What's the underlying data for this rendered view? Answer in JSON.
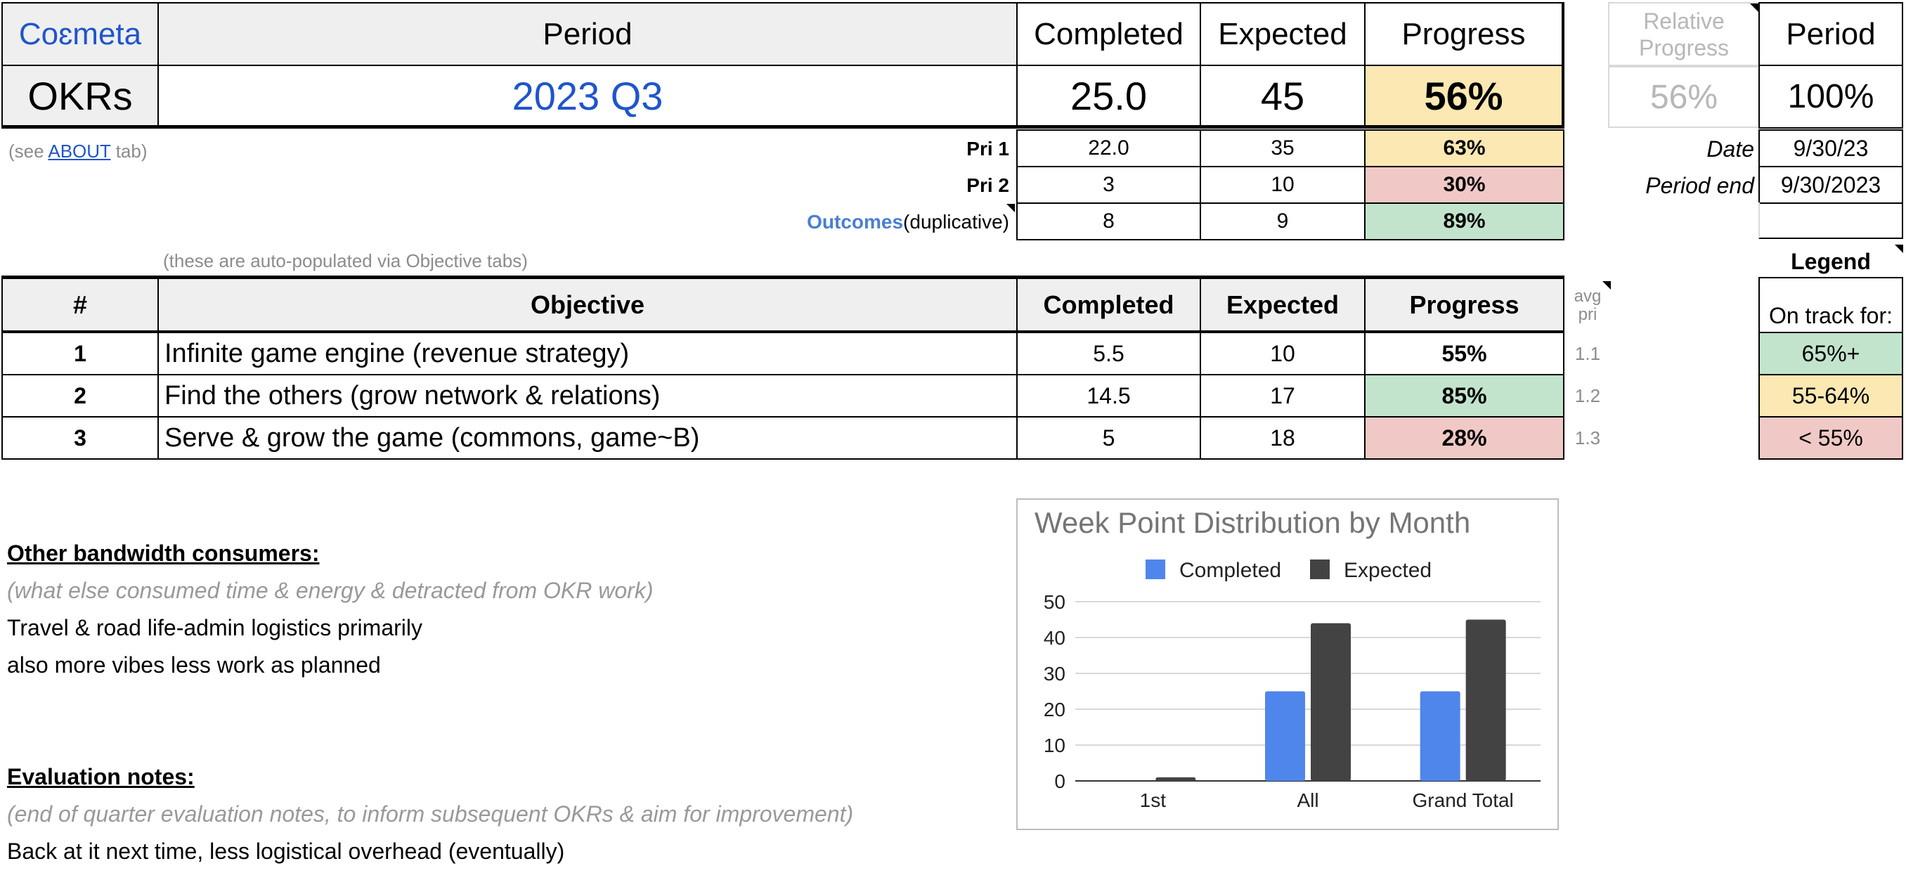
{
  "header": {
    "brand": "Coɛmeta",
    "okrs": "OKRs",
    "period_label": "Period",
    "period_value": "2023 Q3",
    "completed_label": "Completed",
    "completed_value": "25.0",
    "expected_label": "Expected",
    "expected_value": "45",
    "progress_label": "Progress",
    "progress_value": "56%"
  },
  "side_header": {
    "relative_progress_label": "Relative Progress",
    "relative_progress_value": "56%",
    "period_label": "Period",
    "period_value": "100%",
    "date_label": "Date",
    "date_value": "9/30/23",
    "period_end_label": "Period end",
    "period_end_value": "9/30/2023"
  },
  "about_note": {
    "prefix": "(see ",
    "link": "ABOUT",
    "suffix": " tab)"
  },
  "priorities": [
    {
      "label": "Pri 1",
      "completed": "22.0",
      "expected": "35",
      "progress": "63%"
    },
    {
      "label": "Pri 2",
      "completed": "3",
      "expected": "10",
      "progress": "30%"
    },
    {
      "label_link": "Outcomes",
      "label_suffix": " (duplicative)",
      "completed": "8",
      "expected": "9",
      "progress": "89%"
    }
  ],
  "autopop_note": "(these are auto-populated via Objective tabs)",
  "objectives_table": {
    "headers": {
      "num": "#",
      "objective": "Objective",
      "completed": "Completed",
      "expected": "Expected",
      "progress": "Progress",
      "avg_pri": "avg pri"
    },
    "rows": [
      {
        "num": "1",
        "objective": "Infinite game engine (revenue strategy)",
        "completed": "5.5",
        "expected": "10",
        "progress": "55%",
        "avg_pri": "1.1"
      },
      {
        "num": "2",
        "objective": "Find the others (grow network & relations)",
        "completed": "14.5",
        "expected": "17",
        "progress": "85%",
        "avg_pri": "1.2"
      },
      {
        "num": "3",
        "objective": "Serve & grow the game (commons, game~B)",
        "completed": "5",
        "expected": "18",
        "progress": "28%",
        "avg_pri": "1.3"
      }
    ]
  },
  "legend": {
    "title": "Legend",
    "subtitle": "On track for:",
    "items": [
      {
        "label": "65%+",
        "color": "#c2e4cc"
      },
      {
        "label": "55-64%",
        "color": "#fbe8b2"
      },
      {
        "label": "< 55%",
        "color": "#f0c9c6"
      }
    ]
  },
  "bandwidth": {
    "title": "Other bandwidth consumers:",
    "hint": "(what else consumed time & energy & detracted from OKR work)",
    "lines": [
      "Travel & road life-admin logistics primarily",
      "also more vibes less work as planned"
    ]
  },
  "evaluation": {
    "title": "Evaluation notes:",
    "hint": "(end of quarter evaluation notes, to inform subsequent OKRs & aim for improvement)",
    "lines": [
      "Back at it next time, less logistical overhead (eventually)"
    ]
  },
  "colors": {
    "brand_blue": "#1f55cc",
    "completed_series": "#4f86ec",
    "expected_series": "#434343"
  },
  "chart_data": {
    "type": "bar",
    "title": "Week Point Distribution by Month",
    "categories": [
      "1st",
      "All",
      "Grand Total"
    ],
    "series": [
      {
        "name": "Completed",
        "values": [
          0,
          25,
          25
        ]
      },
      {
        "name": "Expected",
        "values": [
          1,
          44,
          45
        ]
      }
    ],
    "ylim": [
      0,
      50
    ],
    "yticks": [
      0,
      10,
      20,
      30,
      40,
      50
    ],
    "grid": true,
    "legend": "top"
  }
}
